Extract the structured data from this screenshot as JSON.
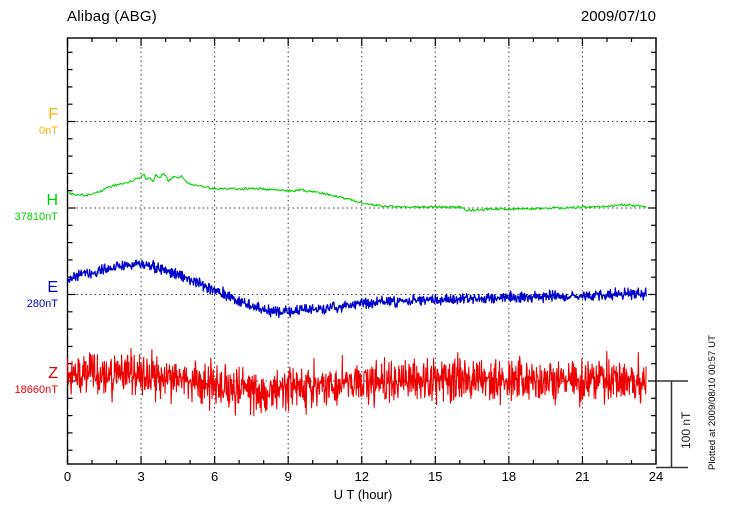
{
  "header": {
    "title": "Alibag (ABG)",
    "date": "2009/07/10"
  },
  "footer": {
    "xlabel": "U T (hour)",
    "plotted_at": "Plotted at 2009/08/10 00:57 UT"
  },
  "scale_bar": {
    "label": "100 nT",
    "nT": 100
  },
  "components": [
    {
      "id": "F",
      "label": "F",
      "value_label": "0nT",
      "color": "#FFB000",
      "has_data": false
    },
    {
      "id": "H",
      "label": "H",
      "value_label": "37810nT",
      "color": "#00D400",
      "has_data": true
    },
    {
      "id": "E",
      "label": "E",
      "value_label": "280nT",
      "color": "#0000CC",
      "has_data": true
    },
    {
      "id": "Z",
      "label": "Z",
      "value_label": "18660nT",
      "color": "#EE0000",
      "has_data": true
    }
  ],
  "colors": {
    "axis": "#000000",
    "grid": "#444444",
    "scalebar": "#333333",
    "F": "#FFB000",
    "H": "#00D400",
    "E": "#0000CC",
    "Z": "#EE0000"
  },
  "chart_data": {
    "type": "line",
    "title": "Alibag (ABG)",
    "date": "2009/07/10",
    "xlabel": "U T (hour)",
    "xlim": [
      0,
      24
    ],
    "x_ticks": [
      0,
      3,
      6,
      9,
      12,
      15,
      18,
      21,
      24
    ],
    "x_minor_tick_hours": 1,
    "y_structure": "four stacked components offset vertically; 100 nT per component slot, minor ticks every 20 nT",
    "grid": "dotted vertical lines every 3 h, dotted horizontal line at each component baseline",
    "legend_position": "left margin (component letter + baseline value)",
    "data_end_hour": 23.6,
    "series": [
      {
        "name": "F",
        "unit": "nT",
        "baseline_value": 0,
        "color": "#FFB000",
        "noise_nT": 0,
        "x": [],
        "dnT": [],
        "note": "no trace plotted (value 0nT)"
      },
      {
        "name": "H",
        "unit": "nT",
        "baseline_value": 37810,
        "color": "#00D400",
        "noise_nT": 0.9,
        "x": [
          0,
          0.3,
          0.7,
          1.0,
          1.3,
          1.6,
          1.9,
          2.2,
          2.5,
          2.8,
          3.0,
          3.1,
          3.2,
          3.35,
          3.5,
          3.6,
          3.75,
          3.9,
          4.0,
          4.1,
          4.2,
          4.35,
          4.5,
          4.65,
          4.8,
          5.0,
          5.3,
          5.6,
          6.0,
          6.5,
          7.0,
          7.5,
          8.0,
          8.5,
          9.0,
          9.5,
          10.0,
          10.5,
          11.0,
          11.5,
          12.0,
          12.5,
          13.0,
          14.0,
          15.0,
          16.0,
          16.3,
          16.6,
          17.0,
          17.5,
          18.0,
          19.0,
          20.0,
          21.0,
          22.0,
          22.5,
          23.0,
          23.6
        ],
        "dnT": [
          17,
          16,
          15,
          16,
          19,
          23,
          26,
          28,
          30,
          33,
          35,
          41,
          33,
          36,
          30,
          38,
          34,
          40,
          38,
          31,
          33,
          37,
          35,
          37,
          31,
          28,
          26,
          24,
          22,
          23,
          22,
          23,
          22,
          21,
          20,
          21,
          19,
          17,
          13,
          10,
          6,
          3,
          2,
          1,
          1,
          1,
          -3,
          -2,
          -2,
          -1,
          -1,
          -1,
          0,
          1,
          2,
          4,
          3,
          1
        ]
      },
      {
        "name": "E",
        "unit": "nT",
        "baseline_value": 280,
        "color": "#0000CC",
        "noise_nT": 3.8,
        "x": [
          0,
          0.5,
          1,
          1.5,
          2,
          2.5,
          3,
          3.5,
          4,
          4.5,
          5,
          5.5,
          6,
          6.5,
          7,
          7.5,
          8,
          8.5,
          9,
          9.5,
          10,
          10.5,
          11,
          11.5,
          12,
          13,
          14,
          15,
          16,
          17,
          18,
          19,
          20,
          21,
          22,
          23,
          23.6
        ],
        "dnT": [
          18,
          22,
          25,
          28,
          31,
          35,
          36,
          32,
          28,
          23,
          17,
          11,
          6,
          -1,
          -8,
          -14,
          -17,
          -20,
          -20,
          -18,
          -17,
          -16,
          -14,
          -13,
          -10,
          -8,
          -7,
          -6,
          -5,
          -4,
          -3,
          -2,
          -2,
          -1,
          0,
          1,
          0
        ]
      },
      {
        "name": "Z",
        "unit": "nT",
        "baseline_value": 18660,
        "color": "#EE0000",
        "noise_nT": 14,
        "x": [
          0,
          1,
          2,
          3,
          4,
          5,
          6,
          7,
          8,
          9,
          10,
          11,
          12,
          13,
          14,
          15,
          16,
          17,
          18,
          19,
          20,
          21,
          22,
          23,
          23.6
        ],
        "dnT": [
          5,
          7,
          7,
          6,
          2,
          -2,
          -6,
          -8,
          -9,
          -8,
          -6,
          -3,
          -1,
          0,
          1,
          1,
          1,
          0,
          1,
          1,
          1,
          2,
          2,
          1,
          1
        ]
      }
    ]
  }
}
